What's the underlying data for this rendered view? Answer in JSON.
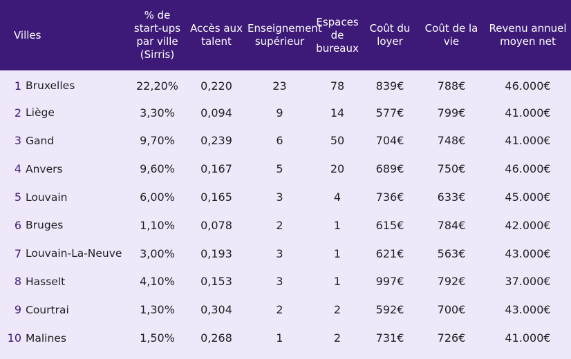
{
  "table": {
    "headers": {
      "city": "Villes",
      "startups": "% de start-ups par ville (Sirris)",
      "talent": "Accès aux talent",
      "education": "Enseignement supérieur",
      "offices": "Espaces de bureaux",
      "rent": "Coût du loyer",
      "living": "Coût de la vie",
      "income": "Revenu annuel moyen net"
    },
    "rows": [
      {
        "rank": "1",
        "city": "Bruxelles",
        "startups": "22,20%",
        "talent": "0,220",
        "education": "23",
        "offices": "78",
        "rent": "839€",
        "living": "788€",
        "income": "46.000€"
      },
      {
        "rank": "2",
        "city": "Liège",
        "startups": "3,30%",
        "talent": "0,094",
        "education": "9",
        "offices": "14",
        "rent": "577€",
        "living": "799€",
        "income": "41.000€"
      },
      {
        "rank": "3",
        "city": "Gand",
        "startups": "9,70%",
        "talent": "0,239",
        "education": "6",
        "offices": "50",
        "rent": "704€",
        "living": "748€",
        "income": "41.000€"
      },
      {
        "rank": "4",
        "city": "Anvers",
        "startups": "9,60%",
        "talent": "0,167",
        "education": "5",
        "offices": "20",
        "rent": "689€",
        "living": "750€",
        "income": "46.000€"
      },
      {
        "rank": "5",
        "city": "Louvain",
        "startups": "6,00%",
        "talent": "0,165",
        "education": "3",
        "offices": "4",
        "rent": "736€",
        "living": "633€",
        "income": "45.000€"
      },
      {
        "rank": "6",
        "city": "Bruges",
        "startups": "1,10%",
        "talent": "0,078",
        "education": "2",
        "offices": "1",
        "rent": "615€",
        "living": "784€",
        "income": "42.000€"
      },
      {
        "rank": "7",
        "city": "Louvain-La-Neuve",
        "startups": "3,00%",
        "talent": "0,193",
        "education": "3",
        "offices": "1",
        "rent": "621€",
        "living": "563€",
        "income": "43.000€"
      },
      {
        "rank": "8",
        "city": "Hasselt",
        "startups": "4,10%",
        "talent": "0,153",
        "education": "3",
        "offices": "1",
        "rent": "997€",
        "living": "792€",
        "income": "37.000€"
      },
      {
        "rank": "9",
        "city": "Courtrai",
        "startups": "1,30%",
        "talent": "0,304",
        "education": "2",
        "offices": "2",
        "rent": "592€",
        "living": "700€",
        "income": "43.000€"
      },
      {
        "rank": "10",
        "city": "Malines",
        "startups": "1,50%",
        "talent": "0,268",
        "education": "1",
        "offices": "2",
        "rent": "731€",
        "living": "726€",
        "income": "41.000€"
      }
    ]
  },
  "colors": {
    "header_bg": "#3d1a78",
    "header_text": "#ffffff",
    "body_bg": "#efe8fb",
    "rank_text": "#3d1a78"
  }
}
